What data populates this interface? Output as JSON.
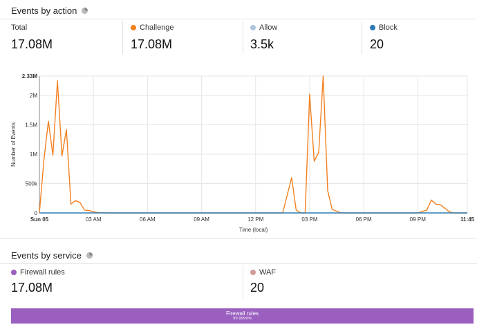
{
  "events_by_action": {
    "title": "Events by action",
    "pie_icon": "pie-chart-icon",
    "stats": [
      {
        "label": "Total",
        "value": "17.08M",
        "color": ""
      },
      {
        "label": "Challenge",
        "value": "17.08M",
        "color": "#f4801f"
      },
      {
        "label": "Allow",
        "value": "3.5k",
        "color": "#b0c4de"
      },
      {
        "label": "Block",
        "value": "20",
        "color": "#2c7bb6"
      }
    ]
  },
  "chart_data": {
    "type": "line",
    "ylabel": "Number of Events",
    "xlabel": "Time (local)",
    "ylim": [
      0,
      2330000
    ],
    "y_ticks": [
      "0",
      "500k",
      "1M",
      "1.5M",
      "2M",
      "2.33M"
    ],
    "y_tick_values": [
      0,
      500000,
      1000000,
      1500000,
      2000000,
      2330000
    ],
    "x_ticks": [
      "Sun 05",
      "03 AM",
      "06 AM",
      "09 AM",
      "12 PM",
      "03 PM",
      "06 PM",
      "09 PM",
      "11:45"
    ],
    "x_tick_hours": [
      0,
      3,
      6,
      9,
      12,
      15,
      18,
      21,
      23.75
    ],
    "grid": true,
    "series": [
      {
        "color": "#f4801f",
        "x": [
          0,
          0.25,
          0.5,
          0.75,
          1,
          1.25,
          1.5,
          1.75,
          2,
          2.25,
          2.5,
          2.75,
          3,
          3.25,
          3.5,
          4,
          5,
          10,
          13.5,
          14,
          14.25,
          14.5,
          14.75,
          15,
          15.25,
          15.5,
          15.75,
          16,
          16.25,
          16.5,
          16.75,
          17,
          18,
          21,
          21.5,
          21.75,
          22,
          22.25,
          22.5,
          22.75,
          23,
          23.5,
          23.75
        ],
        "y": [
          0,
          900000,
          1560000,
          980000,
          2250000,
          970000,
          1420000,
          150000,
          210000,
          180000,
          50000,
          40000,
          20000,
          5000,
          2000,
          0,
          0,
          0,
          0,
          600000,
          50000,
          0,
          0,
          2020000,
          880000,
          1030000,
          2330000,
          380000,
          60000,
          30000,
          0,
          0,
          0,
          0,
          50000,
          220000,
          150000,
          140000,
          80000,
          20000,
          0,
          0,
          0
        ]
      },
      {
        "color": "#2c7bb6",
        "x": [
          0,
          23.75
        ],
        "y": [
          0,
          0
        ]
      }
    ]
  },
  "events_by_service": {
    "title": "Events by service",
    "pie_icon": "pie-chart-icon",
    "stats": [
      {
        "label": "Firewall rules",
        "value": "17.08M",
        "color": "#9a5fbf"
      },
      {
        "label": "WAF",
        "value": "20",
        "color": "#d19a9a"
      }
    ],
    "bar": {
      "label": "Firewall rules",
      "percent": "99.9999%",
      "color": "#9a5fbf"
    }
  }
}
